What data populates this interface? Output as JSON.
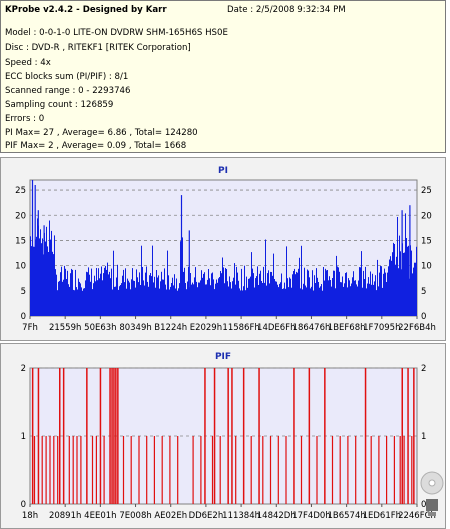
{
  "header": {
    "title": "KProbe v2.4.2 - Designed by Karr",
    "date": "Date : 2/5/2008 9:32:34 PM",
    "lines": [
      "Model : 0-0-1-0 LITE-ON DVDRW SHM-165H6S HS0E",
      "Disc : DVD-R , RITEKF1 [RITEK Corporation]",
      "Speed : 4x",
      "ECC blocks sum (PI/PIF) : 8/1",
      "Scanned range : 0 - 2293746",
      "Sampling count : 126859",
      "Errors : 0",
      "PI Max= 27 , Average= 6.86 , Total= 124280",
      "PIF Max= 2 , Average= 0.09 , Total= 1668"
    ]
  },
  "chart_data": [
    {
      "type": "bar",
      "title": "PI",
      "ylim": [
        0,
        27
      ],
      "yticks": [
        0,
        5,
        10,
        15,
        20,
        25
      ],
      "xticks": [
        "7Fh",
        "21559h",
        "50E63h",
        "80349h",
        "B1224h",
        "E2029h",
        "11586Fh",
        "14DE6Fh",
        "186476h",
        "1BEF68h",
        "1F7095h",
        "22F6B4h"
      ],
      "color": "#1020e0",
      "grid": true,
      "baseline_level": 7,
      "peaks": [
        {
          "pos": 0.005,
          "value": 27
        },
        {
          "pos": 0.012,
          "value": 26
        },
        {
          "pos": 0.02,
          "value": 21
        },
        {
          "pos": 0.035,
          "value": 18
        },
        {
          "pos": 0.39,
          "value": 24
        },
        {
          "pos": 0.41,
          "value": 17
        },
        {
          "pos": 0.96,
          "value": 21
        },
        {
          "pos": 0.98,
          "value": 22
        }
      ]
    },
    {
      "type": "bar",
      "title": "PIF",
      "ylim": [
        0,
        2
      ],
      "yticks": [
        0,
        1,
        2
      ],
      "xticks": [
        "18h",
        "20891h",
        "4EE01h",
        "7E008h",
        "AE02Eh",
        "DD6E2h",
        "111384h",
        "14842Dh",
        "17F4D0h",
        "1B6574h",
        "1ED61Fh",
        "2246FCh"
      ],
      "color": "#e01010",
      "grid": true,
      "max_value_positions": [
        0.005,
        0.02,
        0.075,
        0.085,
        0.145,
        0.18,
        0.205,
        0.21,
        0.215,
        0.22,
        0.225,
        0.45,
        0.475,
        0.51,
        0.52,
        0.55,
        0.59,
        0.68,
        0.72,
        0.76,
        0.865,
        0.96,
        0.975,
        0.99
      ],
      "one_value_positions": [
        0.01,
        0.03,
        0.04,
        0.05,
        0.06,
        0.07,
        0.1,
        0.11,
        0.12,
        0.13,
        0.16,
        0.17,
        0.19,
        0.24,
        0.26,
        0.28,
        0.3,
        0.32,
        0.34,
        0.36,
        0.38,
        0.42,
        0.44,
        0.47,
        0.49,
        0.53,
        0.57,
        0.6,
        0.62,
        0.64,
        0.66,
        0.7,
        0.74,
        0.78,
        0.8,
        0.82,
        0.84,
        0.88,
        0.9,
        0.92,
        0.94,
        0.955,
        0.965,
        0.985
      ]
    }
  ]
}
